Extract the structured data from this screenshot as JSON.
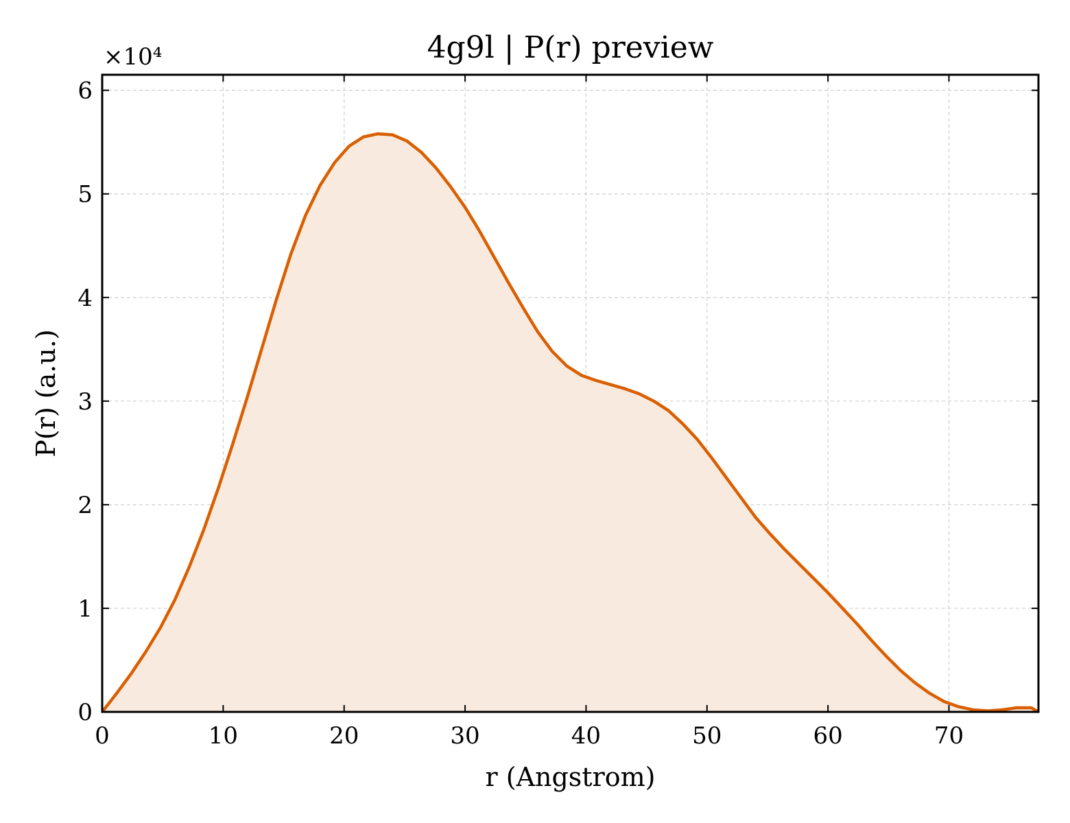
{
  "chart_data": {
    "type": "area",
    "title": "4g9l | P(r) preview",
    "xlabel": "r (Angstrom)",
    "ylabel": "P(r) (a.u.)",
    "y_multiplier_label": "×10⁴",
    "xlim": [
      0,
      77.4
    ],
    "ylim": [
      0,
      6.15
    ],
    "x_ticks": [
      0,
      10,
      20,
      30,
      40,
      50,
      60,
      70
    ],
    "y_ticks": [
      0,
      1,
      2,
      3,
      4,
      5,
      6
    ],
    "grid": true,
    "tick_direction": "in",
    "line_color": "#d95f02",
    "fill_color": "#f9eadf",
    "series": [
      {
        "x": [
          0,
          1.2,
          2.4,
          3.6,
          4.8,
          6,
          7.2,
          8.4,
          9.6,
          10.8,
          12,
          13.2,
          14.4,
          15.6,
          16.8,
          18,
          19.2,
          20.4,
          21.6,
          22.8,
          24,
          25.2,
          26.4,
          27.6,
          28.8,
          30,
          31.2,
          32.4,
          33.6,
          34.8,
          36,
          37.2,
          38.4,
          39.6,
          40.8,
          42,
          43.2,
          44.4,
          45.6,
          46.8,
          48,
          49.2,
          50.4,
          51.6,
          52.8,
          54,
          55.2,
          56.4,
          57.6,
          58.8,
          60,
          61.2,
          62.4,
          63.6,
          64.8,
          66,
          67.2,
          68.4,
          69.6,
          70.8,
          72,
          73.2,
          74.4,
          75.6,
          76.8,
          77.4
        ],
        "y": [
          0,
          0.18,
          0.37,
          0.58,
          0.81,
          1.08,
          1.4,
          1.76,
          2.16,
          2.59,
          3.04,
          3.51,
          3.98,
          4.42,
          4.79,
          5.08,
          5.3,
          5.46,
          5.55,
          5.58,
          5.57,
          5.51,
          5.4,
          5.25,
          5.07,
          4.87,
          4.64,
          4.39,
          4.14,
          3.9,
          3.67,
          3.48,
          3.34,
          3.25,
          3.2,
          3.16,
          3.12,
          3.07,
          3.0,
          2.91,
          2.78,
          2.63,
          2.45,
          2.26,
          2.07,
          1.88,
          1.72,
          1.57,
          1.43,
          1.29,
          1.15,
          1.0,
          0.85,
          0.69,
          0.54,
          0.4,
          0.28,
          0.18,
          0.1,
          0.05,
          0.02,
          0.01,
          0.02,
          0.04,
          0.04,
          0.0
        ]
      }
    ]
  }
}
